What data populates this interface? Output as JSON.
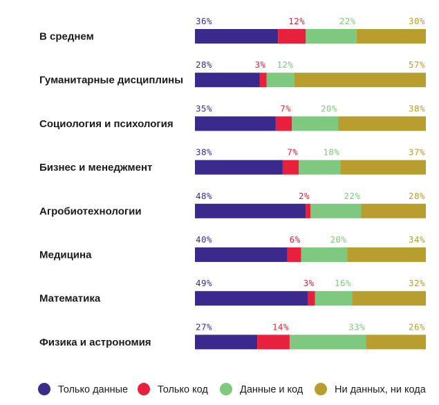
{
  "chart_data": {
    "type": "bar",
    "orientation": "horizontal",
    "stacked": true,
    "unit": "%",
    "categories": [
      "В среднем",
      "Гуманитарные дисциплины",
      "Социология и психология",
      "Бизнес и менеджмент",
      "Агробиотехнологии",
      "Медицина",
      "Математика",
      "Физика и астрономия"
    ],
    "series": [
      {
        "name": "Только данные",
        "color": "#3b2a8c",
        "values": [
          36,
          28,
          35,
          38,
          48,
          40,
          49,
          27
        ]
      },
      {
        "name": "Только код",
        "color": "#e8203c",
        "values": [
          12,
          3,
          7,
          7,
          2,
          6,
          3,
          14
        ]
      },
      {
        "name": "Данные и код",
        "color": "#7ec87f",
        "values": [
          22,
          12,
          20,
          18,
          22,
          20,
          16,
          33
        ]
      },
      {
        "name": "Ни данных, ни кода",
        "color": "#b89d2f",
        "values": [
          30,
          57,
          38,
          37,
          28,
          34,
          32,
          26
        ]
      }
    ],
    "legend_position": "bottom",
    "grid": false
  }
}
